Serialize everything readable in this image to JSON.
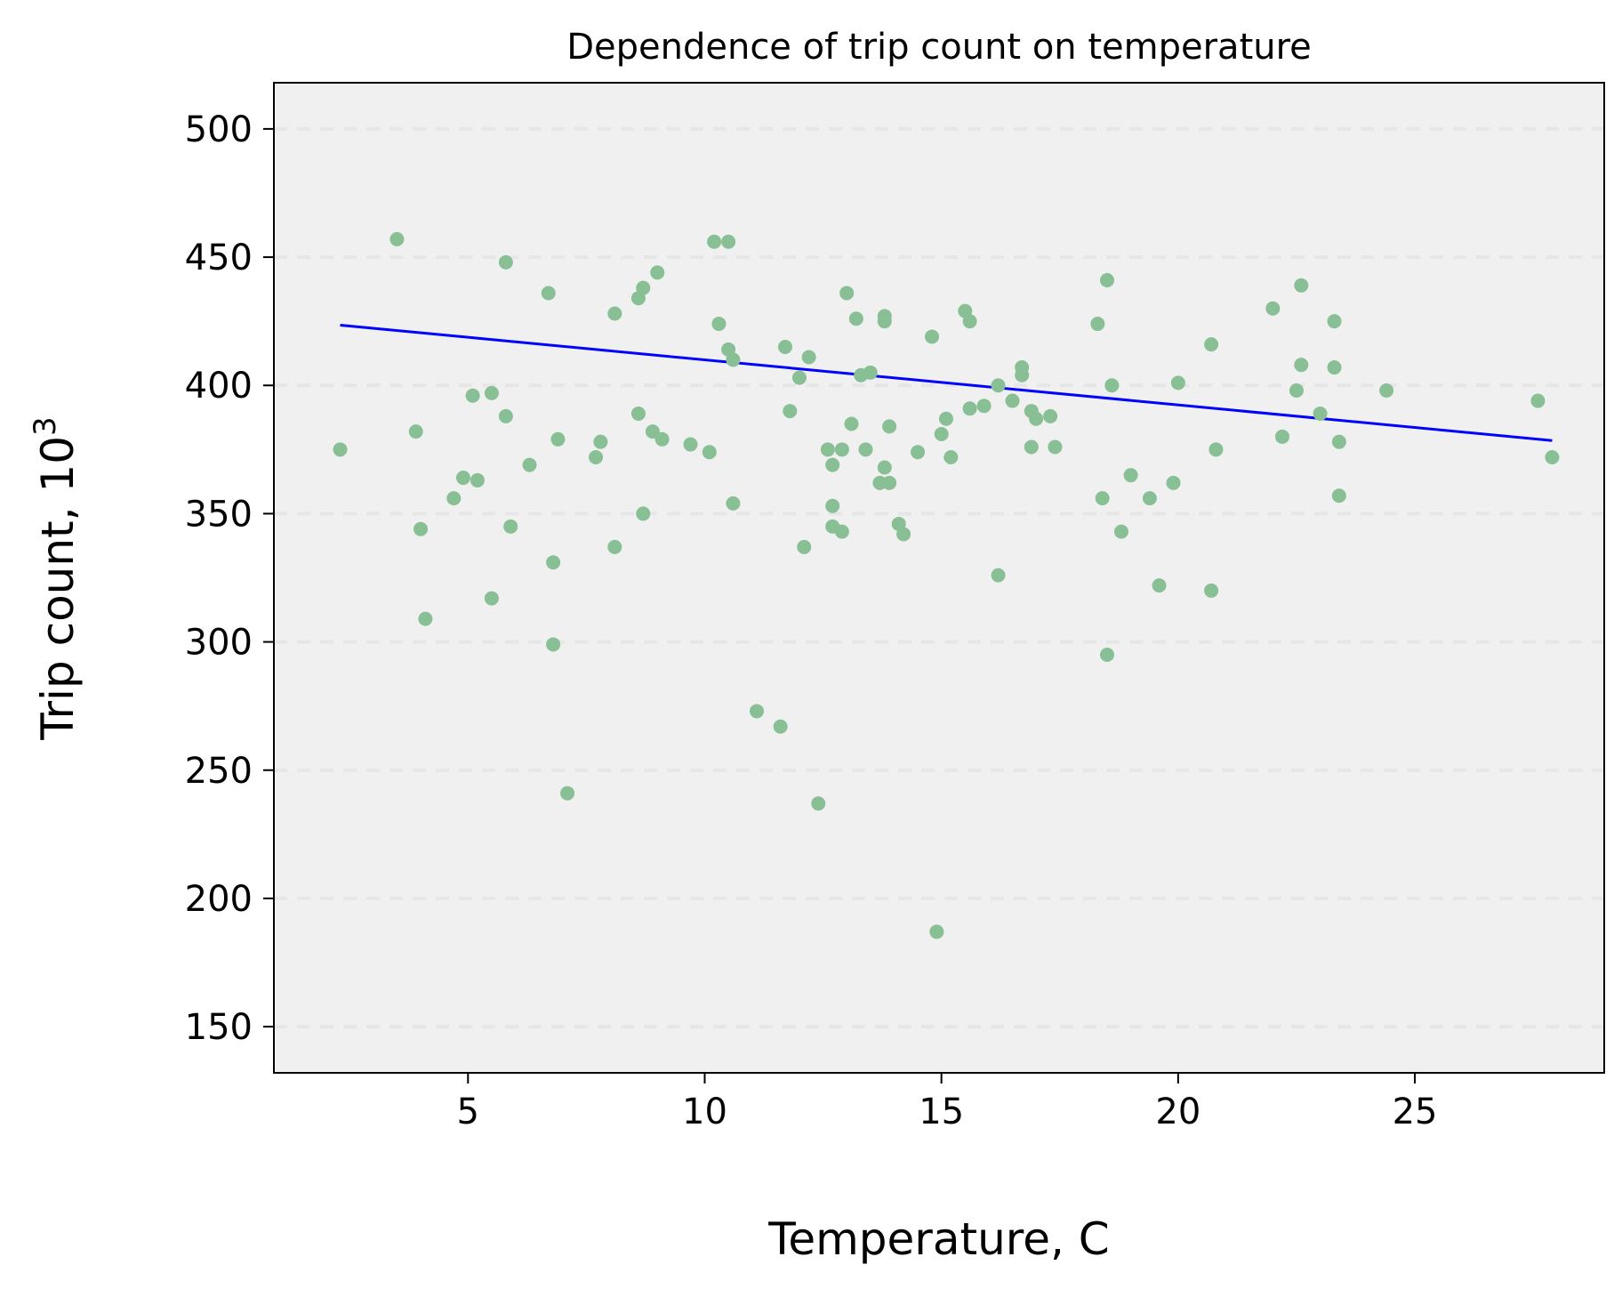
{
  "chart_data": {
    "type": "scatter",
    "title": "Dependence of trip count on temperature",
    "xlabel": "Temperature, C",
    "ylabel": "Trip count, 10",
    "ylabel_superscript": "3",
    "xlim": [
      0.9,
      29.0
    ],
    "ylim": [
      132.0,
      518.0
    ],
    "xticks": [
      5,
      10,
      15,
      20,
      25
    ],
    "yticks": [
      150,
      200,
      250,
      300,
      350,
      400,
      450,
      500
    ],
    "grid": "horizontal dashed",
    "colors": {
      "points": "#88bf94",
      "trend": "#0000ff",
      "grid": "#e6e6e6",
      "plot_bg": "#f0f0f0"
    },
    "trend_line": {
      "x": [
        2.3,
        27.9
      ],
      "y": [
        423.5,
        378.5
      ]
    },
    "points": [
      {
        "x": 2.3,
        "y": 375
      },
      {
        "x": 3.5,
        "y": 457
      },
      {
        "x": 3.9,
        "y": 382
      },
      {
        "x": 4.0,
        "y": 344
      },
      {
        "x": 4.1,
        "y": 309
      },
      {
        "x": 4.7,
        "y": 356
      },
      {
        "x": 4.9,
        "y": 364
      },
      {
        "x": 5.1,
        "y": 396
      },
      {
        "x": 5.2,
        "y": 363
      },
      {
        "x": 5.5,
        "y": 397
      },
      {
        "x": 5.5,
        "y": 317
      },
      {
        "x": 5.8,
        "y": 448
      },
      {
        "x": 5.8,
        "y": 388
      },
      {
        "x": 5.9,
        "y": 345
      },
      {
        "x": 6.3,
        "y": 369
      },
      {
        "x": 6.7,
        "y": 436
      },
      {
        "x": 6.8,
        "y": 299
      },
      {
        "x": 6.8,
        "y": 331
      },
      {
        "x": 6.9,
        "y": 379
      },
      {
        "x": 7.1,
        "y": 241
      },
      {
        "x": 7.7,
        "y": 372
      },
      {
        "x": 7.8,
        "y": 378
      },
      {
        "x": 8.1,
        "y": 428
      },
      {
        "x": 8.1,
        "y": 337
      },
      {
        "x": 8.6,
        "y": 434
      },
      {
        "x": 8.6,
        "y": 389
      },
      {
        "x": 8.7,
        "y": 350
      },
      {
        "x": 8.7,
        "y": 438
      },
      {
        "x": 8.9,
        "y": 382
      },
      {
        "x": 9.0,
        "y": 444
      },
      {
        "x": 9.1,
        "y": 379
      },
      {
        "x": 9.7,
        "y": 377
      },
      {
        "x": 10.1,
        "y": 374
      },
      {
        "x": 10.2,
        "y": 456
      },
      {
        "x": 10.3,
        "y": 424
      },
      {
        "x": 10.5,
        "y": 456
      },
      {
        "x": 10.5,
        "y": 414
      },
      {
        "x": 10.6,
        "y": 410
      },
      {
        "x": 10.6,
        "y": 354
      },
      {
        "x": 11.1,
        "y": 273
      },
      {
        "x": 11.6,
        "y": 267
      },
      {
        "x": 11.7,
        "y": 415
      },
      {
        "x": 11.8,
        "y": 390
      },
      {
        "x": 12.0,
        "y": 403
      },
      {
        "x": 12.1,
        "y": 337
      },
      {
        "x": 12.2,
        "y": 411
      },
      {
        "x": 12.4,
        "y": 237
      },
      {
        "x": 12.6,
        "y": 375
      },
      {
        "x": 12.7,
        "y": 369
      },
      {
        "x": 12.7,
        "y": 345
      },
      {
        "x": 12.7,
        "y": 353
      },
      {
        "x": 12.9,
        "y": 375
      },
      {
        "x": 12.9,
        "y": 343
      },
      {
        "x": 13.0,
        "y": 436
      },
      {
        "x": 13.1,
        "y": 385
      },
      {
        "x": 13.2,
        "y": 426
      },
      {
        "x": 13.3,
        "y": 404
      },
      {
        "x": 13.4,
        "y": 375
      },
      {
        "x": 13.5,
        "y": 405
      },
      {
        "x": 13.7,
        "y": 362
      },
      {
        "x": 13.8,
        "y": 427
      },
      {
        "x": 13.8,
        "y": 425
      },
      {
        "x": 13.8,
        "y": 368
      },
      {
        "x": 13.9,
        "y": 384
      },
      {
        "x": 13.9,
        "y": 362
      },
      {
        "x": 14.1,
        "y": 346
      },
      {
        "x": 14.2,
        "y": 342
      },
      {
        "x": 14.5,
        "y": 374
      },
      {
        "x": 14.8,
        "y": 419
      },
      {
        "x": 14.9,
        "y": 187
      },
      {
        "x": 15.0,
        "y": 381
      },
      {
        "x": 15.1,
        "y": 387
      },
      {
        "x": 15.2,
        "y": 372
      },
      {
        "x": 15.5,
        "y": 429
      },
      {
        "x": 15.6,
        "y": 391
      },
      {
        "x": 15.6,
        "y": 425
      },
      {
        "x": 15.9,
        "y": 392
      },
      {
        "x": 16.2,
        "y": 400
      },
      {
        "x": 16.2,
        "y": 326
      },
      {
        "x": 16.5,
        "y": 394
      },
      {
        "x": 16.7,
        "y": 404
      },
      {
        "x": 16.7,
        "y": 407
      },
      {
        "x": 16.9,
        "y": 390
      },
      {
        "x": 16.9,
        "y": 376
      },
      {
        "x": 17.0,
        "y": 387
      },
      {
        "x": 17.3,
        "y": 388
      },
      {
        "x": 17.4,
        "y": 376
      },
      {
        "x": 18.3,
        "y": 424
      },
      {
        "x": 18.4,
        "y": 356
      },
      {
        "x": 18.5,
        "y": 441
      },
      {
        "x": 18.5,
        "y": 295
      },
      {
        "x": 18.6,
        "y": 400
      },
      {
        "x": 18.8,
        "y": 343
      },
      {
        "x": 19.0,
        "y": 365
      },
      {
        "x": 19.4,
        "y": 356
      },
      {
        "x": 19.6,
        "y": 322
      },
      {
        "x": 19.9,
        "y": 362
      },
      {
        "x": 20.0,
        "y": 401
      },
      {
        "x": 20.7,
        "y": 416
      },
      {
        "x": 20.7,
        "y": 320
      },
      {
        "x": 20.8,
        "y": 375
      },
      {
        "x": 22.0,
        "y": 430
      },
      {
        "x": 22.2,
        "y": 380
      },
      {
        "x": 22.5,
        "y": 398
      },
      {
        "x": 22.6,
        "y": 439
      },
      {
        "x": 22.6,
        "y": 408
      },
      {
        "x": 23.0,
        "y": 389
      },
      {
        "x": 23.3,
        "y": 425
      },
      {
        "x": 23.3,
        "y": 407
      },
      {
        "x": 23.4,
        "y": 378
      },
      {
        "x": 23.4,
        "y": 357
      },
      {
        "x": 24.4,
        "y": 398
      },
      {
        "x": 27.6,
        "y": 394
      },
      {
        "x": 27.9,
        "y": 372
      }
    ]
  }
}
